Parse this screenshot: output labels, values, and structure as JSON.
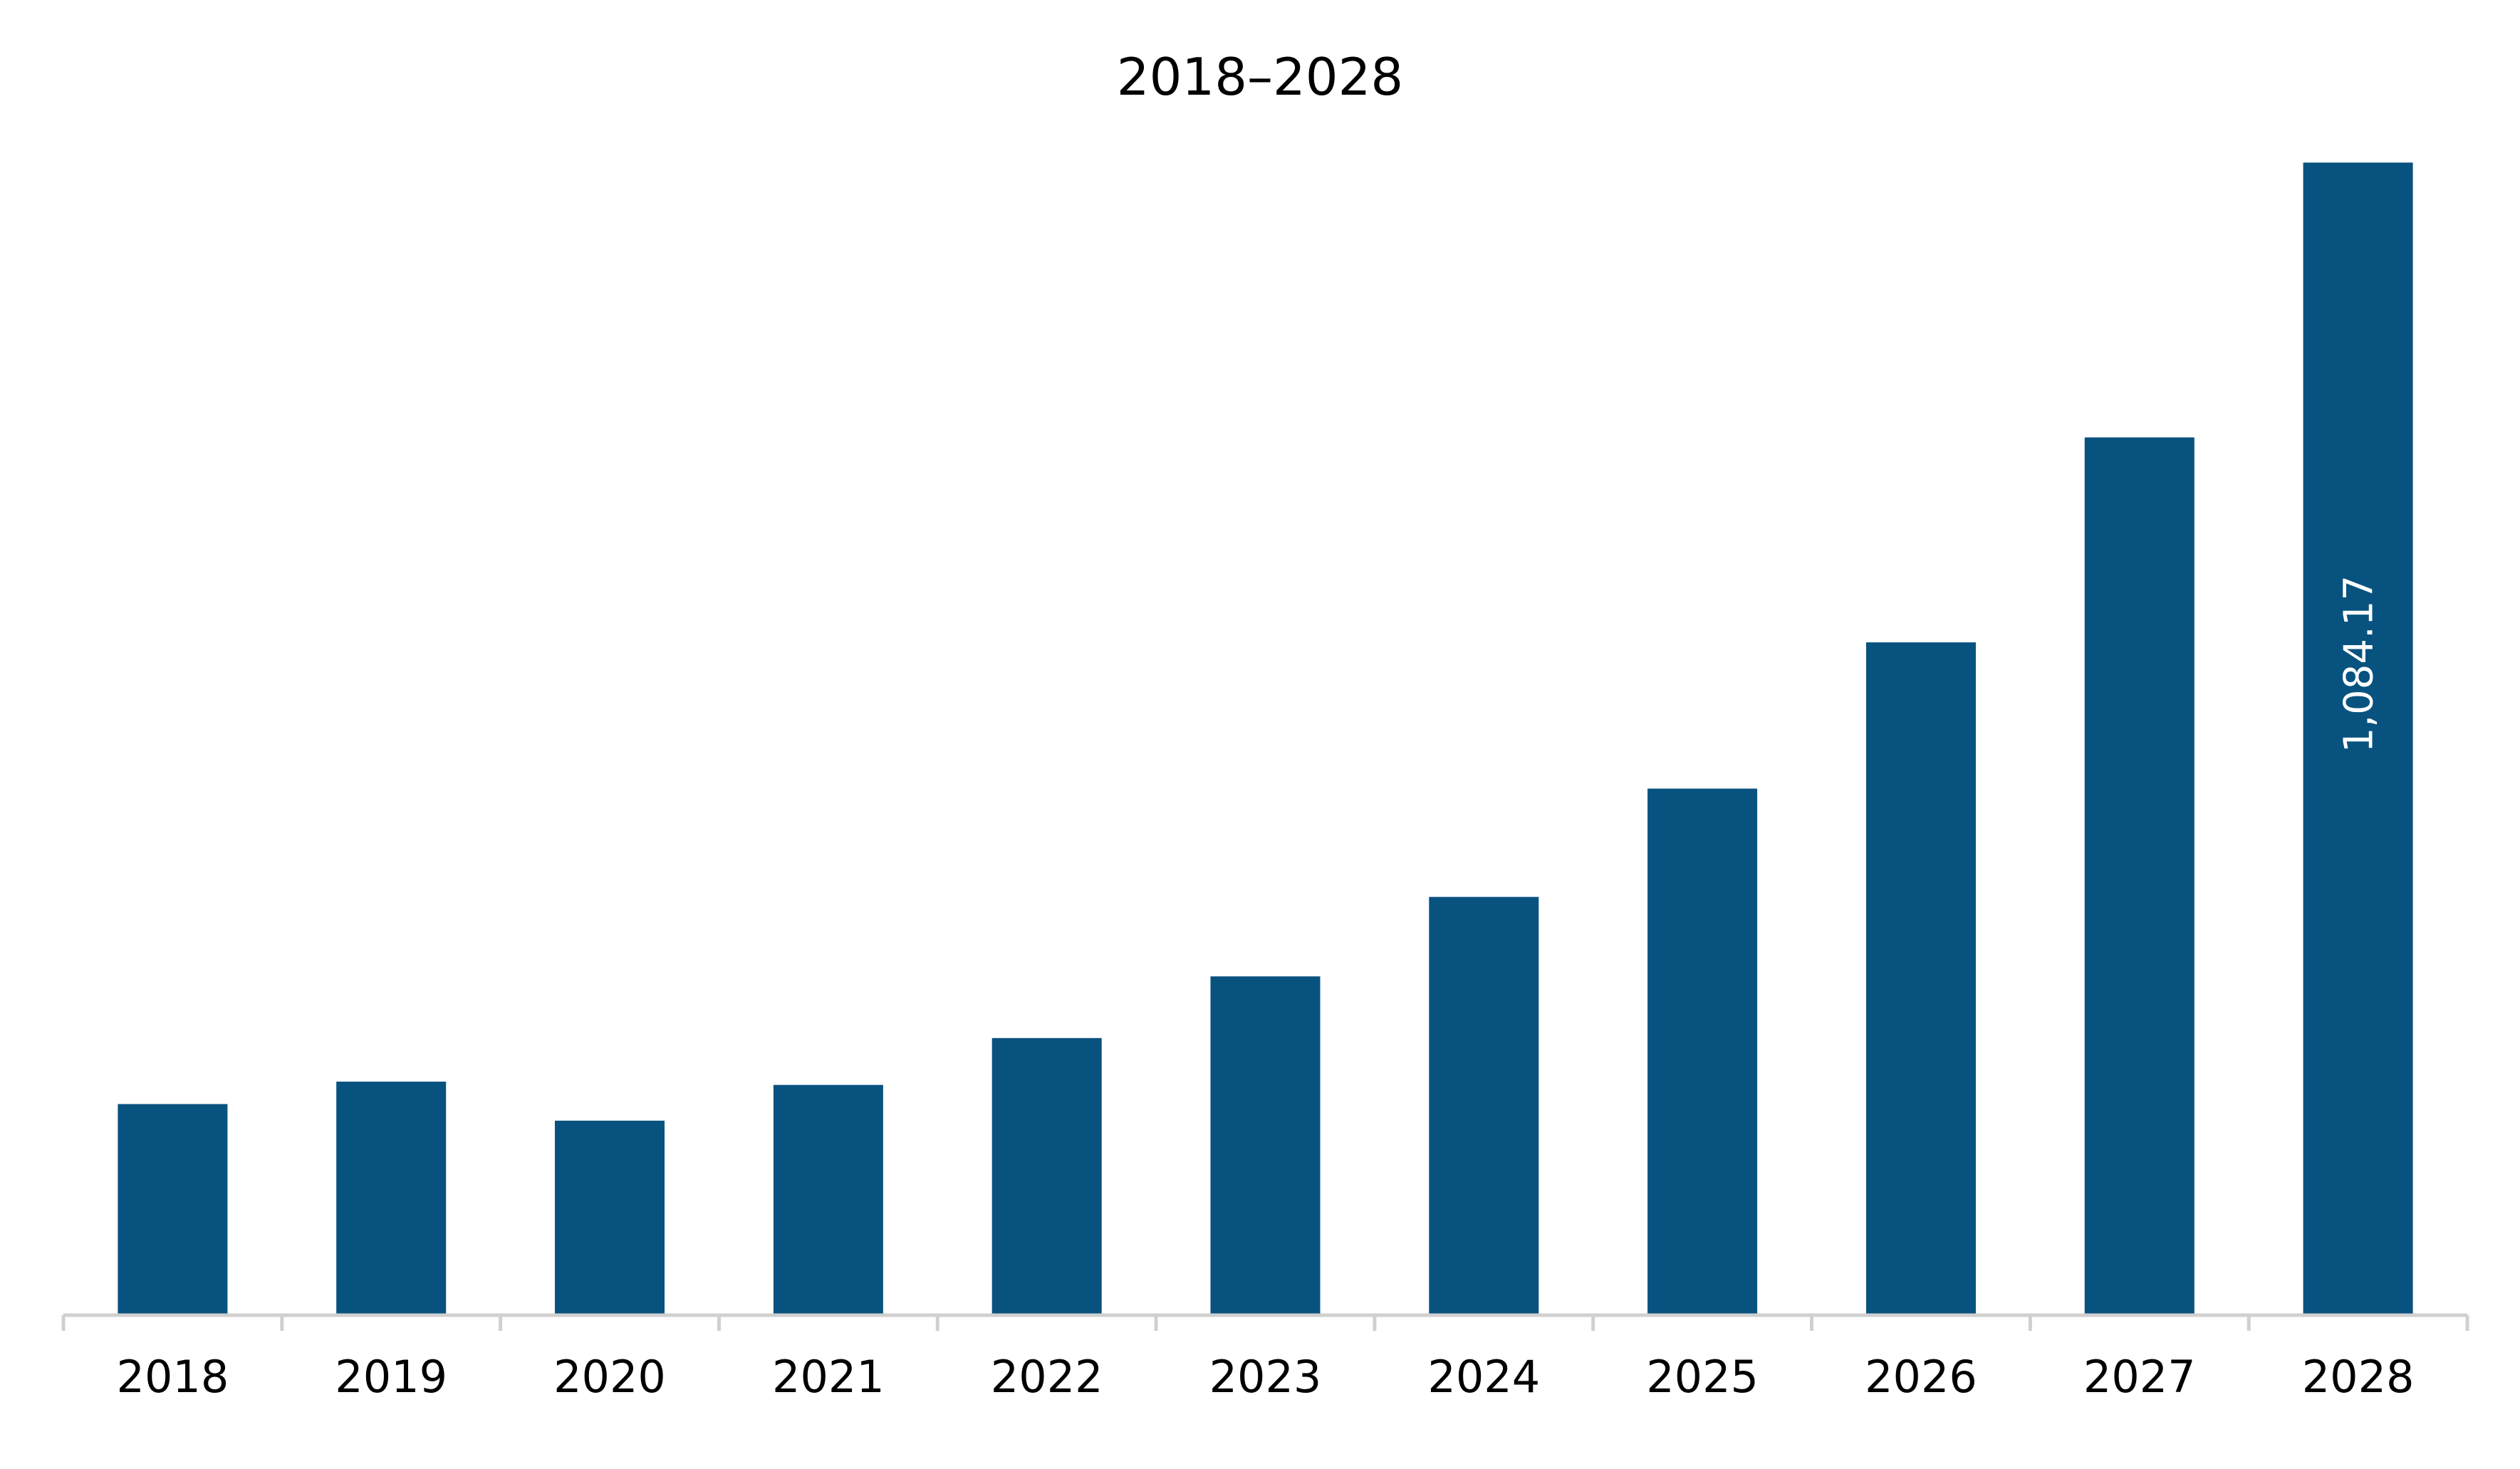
{
  "chart_data": {
    "type": "bar",
    "title": "2018–2028",
    "xlabel": "",
    "ylabel": "",
    "categories": [
      "2018",
      "2019",
      "2020",
      "2021",
      "2022",
      "2023",
      "2024",
      "2025",
      "2026",
      "2027",
      "2028"
    ],
    "values": [
      198.6,
      219.7,
      183.0,
      216.6,
      260.7,
      318.7,
      393.4,
      495.3,
      632.9,
      825.6,
      1084.17
    ],
    "data_labels": [
      "",
      "",
      "",
      "",
      "",
      "",
      "",
      "",
      "",
      "",
      "1,084.17"
    ],
    "ylim": [
      0,
      1150
    ],
    "bar_color": "#08527f",
    "axis_color": "#d0d0d0",
    "grid": false,
    "legend": "none"
  }
}
